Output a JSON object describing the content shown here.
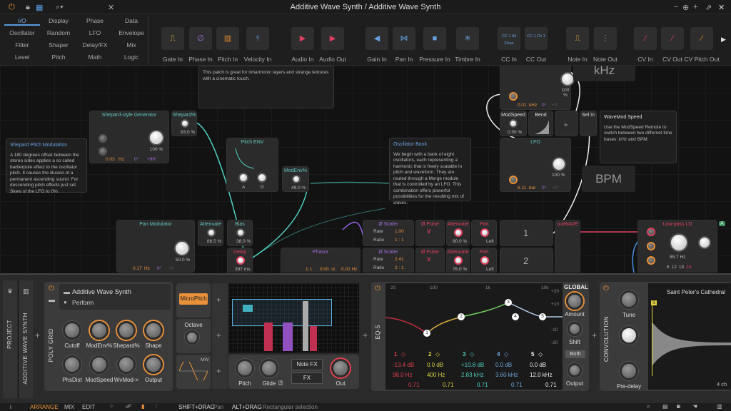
{
  "window": {
    "title": "Additive Wave Synth / Additive Wave Synth",
    "controls": [
      "minimize",
      "zoom",
      "plus",
      "pop-out",
      "close"
    ]
  },
  "toolbar": {
    "power": "power-icon",
    "lock": "lock-icon",
    "grid": "grid-icon",
    "search": "search-icon",
    "close": "close-icon"
  },
  "browser": {
    "categories": [
      "I/O",
      "Display",
      "Phase",
      "Data",
      "Oscillator",
      "Random",
      "LFO",
      "Envelope",
      "Filter",
      "Shaper",
      "Delay/FX",
      "Mix",
      "Level",
      "Pitch",
      "Math",
      "Logic"
    ],
    "selected": "I/O",
    "modules": [
      {
        "label": "Gate In",
        "glyph": "⎍",
        "color": "#e0b040"
      },
      {
        "label": "Phase In",
        "glyph": "∅",
        "color": "#a070e0"
      },
      {
        "label": "Pitch In",
        "glyph": "▥",
        "color": "#e08a30"
      },
      {
        "label": "Velocity In",
        "glyph": "⫯",
        "color": "#6aa0e0"
      },
      {
        "label": "Audio In",
        "glyph": "▶",
        "color": "#e04060"
      },
      {
        "label": "Audio Out",
        "glyph": "▶",
        "color": "#e04060"
      },
      {
        "label": "Gain In",
        "glyph": "◀",
        "color": "#6aa0e0"
      },
      {
        "label": "Pan In",
        "glyph": "⋈",
        "color": "#6aa0e0"
      },
      {
        "label": "Pressure In",
        "glyph": "■",
        "color": "#6aa0e0"
      },
      {
        "label": "Timbre In",
        "glyph": "✳",
        "color": "#6aa0e0"
      },
      {
        "label": "CC In",
        "glyph": "CC 1 All Chan",
        "color": "#6aa0e0"
      },
      {
        "label": "CC Out",
        "glyph": "CC 1 Ch 1",
        "color": "#6aa0e0"
      },
      {
        "label": "Note In",
        "glyph": "⎍",
        "color": "#e0b040"
      },
      {
        "label": "Note Out",
        "glyph": "⋮",
        "color": "#888"
      },
      {
        "label": "CV In",
        "glyph": "⁄",
        "color": "#e04060"
      },
      {
        "label": "CV Out",
        "glyph": "⁄",
        "color": "#e04060"
      },
      {
        "label": "CV Pitch Out",
        "glyph": "⁄",
        "color": "#e08a30"
      }
    ]
  },
  "canvas": {
    "notes": {
      "patch": "This patch is great for inharmonic layers and strange textures with a cinematic touch.",
      "shepard_title": "Shepard  Pitch Modulation",
      "shepard_body": "A 180 degrees offset between the stereo sides applies a so called barberpole effect to the oscillator pitch. It causes the illusion of a permanent ascending sound. For descending pitch effects just set Skew of the LFO to 0%.",
      "osc_title": "Oscillator Bank",
      "osc_body": "We begin with a bank of eight oscillators, each representing a harmonic that is freely scalable in pitch and waveform. They are routed through a Merge module that is controlled by an LFO. This combination offers powerful possibilities for the resulting mix of waves.",
      "wave_title": "WaveMod Speed",
      "wave_body": "Use the ModSpeed Remote to switch between two differnet time bases: kHz and BPM."
    },
    "shepard_gen": {
      "title": "Shepard-style Generator",
      "rate": "0.03",
      "rate_unit": "Hz",
      "phase": "0°",
      "offset": "+90°",
      "amount": "100 %"
    },
    "shepard_pct": {
      "title": "Shepard%",
      "value": "83.0 %"
    },
    "pitch_env": {
      "title": "Pitch ENV",
      "a": "A",
      "d": "D"
    },
    "modenv": {
      "title": "ModEnv%",
      "value": "49.0 %"
    },
    "lfo_top": {
      "rate": "0.01",
      "unit": "kHz",
      "phase": "0°",
      "offset": "+0°",
      "amount": "100 %"
    },
    "khz": "kHz",
    "bpm": "BPM",
    "modspeed": {
      "title": "ModSpeed",
      "value": "0.50 %"
    },
    "bend": {
      "title": "Bend"
    },
    "approx": "≈",
    "selin": {
      "title": "Sel In"
    },
    "lfo": {
      "title": "LFO",
      "rate": "6.11",
      "unit": "bar",
      "phase": "0°",
      "offset": "+0°",
      "amount": "100 %"
    },
    "pan_mod": {
      "title": "Pan Modulator",
      "rate": "0.17",
      "unit": "Hz",
      "phase": "0°",
      "offset": "-0°",
      "amount": "50.0 %"
    },
    "attenuate1": {
      "title": "Attenuate",
      "value": "86.5 %"
    },
    "bias": {
      "title": "Bias",
      "value": "38.0 %"
    },
    "delay": {
      "title": "Delay",
      "value": "397 ms"
    },
    "phasor": {
      "title": "Phasor",
      "ratio": "1:1",
      "offset": "0.00",
      "offset_unit": "st",
      "rate": "0.02 Hz"
    },
    "rows": [
      {
        "scaler": "Ø Scaler",
        "rate_label": "Rate",
        "rate": "1.00",
        "ratio_label": "Ratio",
        "ratio": "1 : 1",
        "pulse": "Ø Pulse",
        "att": "Attenuate",
        "att_val": "80.0 %",
        "pan": "Pan",
        "pan_val": "Left",
        "num": "1"
      },
      {
        "scaler": "Ø Scaler",
        "rate_label": "Rate",
        "rate": "2.41",
        "ratio_label": "Ratio",
        "ratio": "2 : 1",
        "pulse": "Ø Pulse",
        "att": "Attenuate",
        "att_val": "76.0 %",
        "pan": "Pan",
        "pan_val": "Left",
        "num": "2"
      }
    ],
    "outwave": "outWAVE",
    "lowpass": {
      "title": "Low-pass LD",
      "freq": "85.7 Hz",
      "slopes": [
        "6",
        "12",
        "18",
        "24"
      ],
      "selected_slope": "24"
    },
    "a_badge": "A"
  },
  "devices": {
    "project": "PROJECT",
    "track": "ADDITIVE WAVE SYNTH",
    "polygrid": {
      "label": "POLY GRID",
      "preset": "Additive Wave Synth",
      "page": "Perform",
      "knobs": [
        "Cutoff",
        "ModEnv%",
        "Shepard%",
        "Shape",
        "PhsDist",
        "ModSpeed",
        "WvMod->",
        "Output"
      ]
    },
    "microPitch": "MicroPitch",
    "octave": "Octave",
    "mw": "MW",
    "pitch": "Pitch",
    "glide": "Glide",
    "glide_badge": "L",
    "notefx": "Note FX",
    "fx": "FX",
    "out": "Out",
    "eq": {
      "label": "EQ-5",
      "freq_ticks": [
        "20",
        "100",
        "1k",
        "10k"
      ],
      "db_ticks": [
        "+20",
        "+10",
        "-10",
        "-20"
      ],
      "bands": [
        {
          "n": "1",
          "gain": "-13.4 dB",
          "freq": "98.0 Hz",
          "q": "0.71",
          "color": "#e04050"
        },
        {
          "n": "2",
          "gain": "0.0 dB",
          "freq": "400 Hz",
          "q": "0.71",
          "color": "#d8d040"
        },
        {
          "n": "3",
          "gain": "+10.8 dB",
          "freq": "2.83 kHz",
          "q": "0.71",
          "color": "#50d0c0"
        },
        {
          "n": "4",
          "gain": "0.0 dB",
          "freq": "3.60 kHz",
          "q": "0.71",
          "color": "#70a8e0"
        },
        {
          "n": "5",
          "gain": "0.0 dB",
          "freq": "12.0 kHz",
          "q": "0.71",
          "color": "#eeeeee"
        }
      ],
      "global": "GLOBAL",
      "amount": "Amount",
      "shift": "Shift",
      "mode": "Both",
      "output": "Output"
    },
    "conv": {
      "label": "CONVOLUTION",
      "tune": "Tune",
      "predelay": "Pre-delay",
      "ir": "Saint Peter's Cathedral",
      "marker": "S",
      "channels": "4 ch"
    }
  },
  "status": {
    "info": "i",
    "tabs": [
      "ARRANGE",
      "MIX",
      "EDIT"
    ],
    "active_tab": "ARRANGE",
    "hint1_key": "SHIFT+DRAG",
    "hint1": "Pan",
    "hint2_key": "ALT+DRAG",
    "hint2": "Rectangular selection"
  },
  "colors": {
    "accent": "#e8913a",
    "cable_teal": "#4fd0c0",
    "cable_red": "#e04060",
    "cable_purple": "#9060e0"
  }
}
